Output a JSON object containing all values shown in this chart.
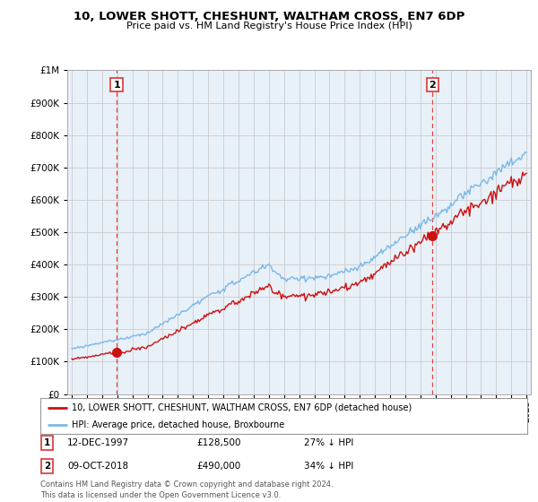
{
  "title": "10, LOWER SHOTT, CHESHUNT, WALTHAM CROSS, EN7 6DP",
  "subtitle": "Price paid vs. HM Land Registry's House Price Index (HPI)",
  "legend_line1": "10, LOWER SHOTT, CHESHUNT, WALTHAM CROSS, EN7 6DP (detached house)",
  "legend_line2": "HPI: Average price, detached house, Broxbourne",
  "annotation1_label": "1",
  "annotation1_date": "12-DEC-1997",
  "annotation1_price": "£128,500",
  "annotation1_hpi": "27% ↓ HPI",
  "annotation2_label": "2",
  "annotation2_date": "09-OCT-2018",
  "annotation2_price": "£490,000",
  "annotation2_hpi": "34% ↓ HPI",
  "footer": "Contains HM Land Registry data © Crown copyright and database right 2024.\nThis data is licensed under the Open Government Licence v3.0.",
  "hpi_color": "#7ab8e8",
  "price_color": "#cc1111",
  "dashed_color": "#dd4444",
  "grid_color": "#cccccc",
  "plot_bg_color": "#e8f0f8",
  "background_color": "#ffffff",
  "annotation_marker_color": "#cc1111",
  "ylim_max": 1000000,
  "ylim_min": 0
}
